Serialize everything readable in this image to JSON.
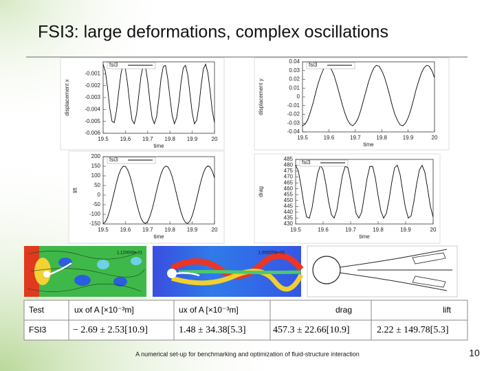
{
  "header": {
    "title": "FSI3: large deformations, complex oscillations"
  },
  "chart_data": [
    {
      "type": "line",
      "ylabel": "displacement x",
      "xlabel": "time",
      "x": [
        19.5,
        19.51,
        19.52,
        19.53,
        19.54,
        19.55,
        19.56,
        19.57,
        19.58,
        19.59,
        19.6,
        19.61,
        19.62,
        19.63,
        19.64,
        19.65,
        19.66,
        19.67,
        19.68,
        19.69,
        19.7,
        19.71,
        19.72,
        19.73,
        19.74,
        19.75,
        19.76,
        19.77,
        19.78,
        19.79,
        19.8,
        19.81,
        19.82,
        19.83,
        19.84,
        19.85,
        19.86,
        19.87,
        19.88,
        19.89,
        19.9,
        19.91,
        19.92,
        19.93,
        19.94,
        19.95,
        19.96,
        19.97,
        19.98,
        19.99,
        20
      ],
      "series": [
        {
          "name": "fsi3",
          "color": "#000000",
          "values": [
            -0.0002,
            -0.0008,
            -0.0022,
            -0.0039,
            -0.005,
            -0.0051,
            -0.0041,
            -0.0025,
            -0.001,
            -0.0002,
            -0.0006,
            -0.0019,
            -0.0036,
            -0.0049,
            -0.0052,
            -0.0044,
            -0.0028,
            -0.0012,
            -0.0003,
            -0.0004,
            -0.0016,
            -0.0033,
            -0.0047,
            -0.0052,
            -0.0046,
            -0.0031,
            -0.0014,
            -0.0004,
            -0.0003,
            -0.0014,
            -0.003,
            -0.0045,
            -0.0052,
            -0.0047,
            -0.0034,
            -0.0017,
            -0.0005,
            -0.0003,
            -0.0011,
            -0.0027,
            -0.0043,
            -0.0052,
            -0.0049,
            -0.0037,
            -0.002,
            -0.0006,
            -0.0002,
            -0.0009,
            -0.0024,
            -0.0041,
            -0.0051
          ]
        }
      ],
      "xlim": [
        19.5,
        20
      ],
      "xticks": [
        19.5,
        19.6,
        19.7,
        19.8,
        19.9,
        20
      ],
      "ylim": [
        -0.006,
        0
      ],
      "yticks": [
        -0.006,
        -0.005,
        -0.004,
        -0.003,
        -0.002,
        -0.001
      ]
    },
    {
      "type": "line",
      "ylabel": "displacement y",
      "xlabel": "time",
      "x": [
        19.5,
        19.51,
        19.52,
        19.53,
        19.54,
        19.55,
        19.56,
        19.57,
        19.58,
        19.59,
        19.6,
        19.61,
        19.62,
        19.63,
        19.64,
        19.65,
        19.66,
        19.67,
        19.68,
        19.69,
        19.7,
        19.71,
        19.72,
        19.73,
        19.74,
        19.75,
        19.76,
        19.77,
        19.78,
        19.79,
        19.8,
        19.81,
        19.82,
        19.83,
        19.84,
        19.85,
        19.86,
        19.87,
        19.88,
        19.89,
        19.9,
        19.91,
        19.92,
        19.93,
        19.94,
        19.95,
        19.96,
        19.97,
        19.98,
        19.99,
        20
      ],
      "series": [
        {
          "name": "fsi3",
          "color": "#000000",
          "values": [
            -0.033,
            -0.031,
            -0.026,
            -0.017,
            -0.007,
            0.005,
            0.016,
            0.025,
            0.032,
            0.036,
            0.035,
            0.031,
            0.024,
            0.014,
            0.003,
            -0.008,
            -0.018,
            -0.026,
            -0.031,
            -0.033,
            -0.03,
            -0.025,
            -0.016,
            -0.005,
            0.006,
            0.017,
            0.026,
            0.033,
            0.036,
            0.035,
            0.03,
            0.023,
            0.013,
            0.002,
            -0.01,
            -0.02,
            -0.027,
            -0.032,
            -0.033,
            -0.03,
            -0.024,
            -0.015,
            -0.004,
            0.008,
            0.018,
            0.027,
            0.033,
            0.036,
            0.035,
            0.03,
            0.022
          ]
        }
      ],
      "xlim": [
        19.5,
        20
      ],
      "xticks": [
        19.5,
        19.6,
        19.7,
        19.8,
        19.9,
        20
      ],
      "ylim": [
        -0.04,
        0.04
      ],
      "yticks": [
        -0.04,
        -0.03,
        -0.02,
        -0.01,
        0,
        0.01,
        0.02,
        0.03,
        0.04
      ]
    },
    {
      "type": "line",
      "ylabel": "lift",
      "xlabel": "time",
      "x": [
        19.5,
        19.51,
        19.52,
        19.53,
        19.54,
        19.55,
        19.56,
        19.57,
        19.58,
        19.59,
        19.6,
        19.61,
        19.62,
        19.63,
        19.64,
        19.65,
        19.66,
        19.67,
        19.68,
        19.69,
        19.7,
        19.71,
        19.72,
        19.73,
        19.74,
        19.75,
        19.76,
        19.77,
        19.78,
        19.79,
        19.8,
        19.81,
        19.82,
        19.83,
        19.84,
        19.85,
        19.86,
        19.87,
        19.88,
        19.89,
        19.9,
        19.91,
        19.92,
        19.93,
        19.94,
        19.95,
        19.96,
        19.97,
        19.98,
        19.99,
        20
      ],
      "series": [
        {
          "name": "fsi3",
          "color": "#000000",
          "values": [
            -148,
            -139,
            -116,
            -79,
            -33,
            16,
            64,
            106,
            135,
            150,
            149,
            132,
            101,
            58,
            10,
            -40,
            -84,
            -120,
            -141,
            -147,
            -137,
            -111,
            -73,
            -27,
            23,
            70,
            110,
            138,
            151,
            148,
            128,
            96,
            52,
            3,
            -46,
            -90,
            -123,
            -143,
            -147,
            -135,
            -107,
            -67,
            -20,
            29,
            76,
            115,
            141,
            152,
            146,
            125,
            90
          ]
        }
      ],
      "xlim": [
        19.5,
        20
      ],
      "xticks": [
        19.5,
        19.6,
        19.7,
        19.8,
        19.9,
        20
      ],
      "ylim": [
        -150,
        200
      ],
      "yticks": [
        -150,
        -100,
        -50,
        0,
        50,
        100,
        150,
        200
      ]
    },
    {
      "type": "line",
      "ylabel": "drag",
      "xlabel": "time",
      "x": [
        19.5,
        19.51,
        19.52,
        19.53,
        19.54,
        19.55,
        19.56,
        19.57,
        19.58,
        19.59,
        19.6,
        19.61,
        19.62,
        19.63,
        19.64,
        19.65,
        19.66,
        19.67,
        19.68,
        19.69,
        19.7,
        19.71,
        19.72,
        19.73,
        19.74,
        19.75,
        19.76,
        19.77,
        19.78,
        19.79,
        19.8,
        19.81,
        19.82,
        19.83,
        19.84,
        19.85,
        19.86,
        19.87,
        19.88,
        19.89,
        19.9,
        19.91,
        19.92,
        19.93,
        19.94,
        19.95,
        19.96,
        19.97,
        19.98,
        19.99,
        20
      ],
      "series": [
        {
          "name": "fsi3",
          "color": "#000000",
          "values": [
            480,
            475,
            462,
            447,
            436,
            435,
            444,
            459,
            473,
            480,
            476,
            464,
            449,
            438,
            435,
            442,
            457,
            471,
            479,
            478,
            467,
            452,
            439,
            435,
            440,
            454,
            469,
            479,
            479,
            469,
            454,
            441,
            435,
            439,
            451,
            466,
            478,
            480,
            472,
            457,
            443,
            435,
            437,
            449,
            464,
            476,
            480,
            474,
            460,
            445,
            436
          ]
        }
      ],
      "xlim": [
        19.5,
        20
      ],
      "xticks": [
        19.5,
        19.6,
        19.7,
        19.8,
        19.9,
        20
      ],
      "ylim": [
        430,
        485
      ],
      "yticks": [
        430,
        435,
        440,
        445,
        450,
        455,
        460,
        465,
        470,
        475,
        480,
        485
      ]
    }
  ],
  "images": {
    "left_label": "1.120000e-01",
    "middle_label": "1.000200e+01"
  },
  "table": {
    "header": [
      "Test",
      "ux of A  [×10⁻³m]",
      "ux of A  [×10⁻³m]",
      "drag",
      "lift"
    ],
    "rows": [
      [
        "FSI3",
        "− 2.69 ± 2.53[10.9]",
        "1.48 ± 34.38[5.3]",
        "457.3 ± 22.66[10.9]",
        "2.22 ± 149.78[5.3]"
      ]
    ]
  },
  "footer": {
    "text": "A numerical set-up for benchmarking and optimization of fluid-structure interaction",
    "page": "10"
  }
}
